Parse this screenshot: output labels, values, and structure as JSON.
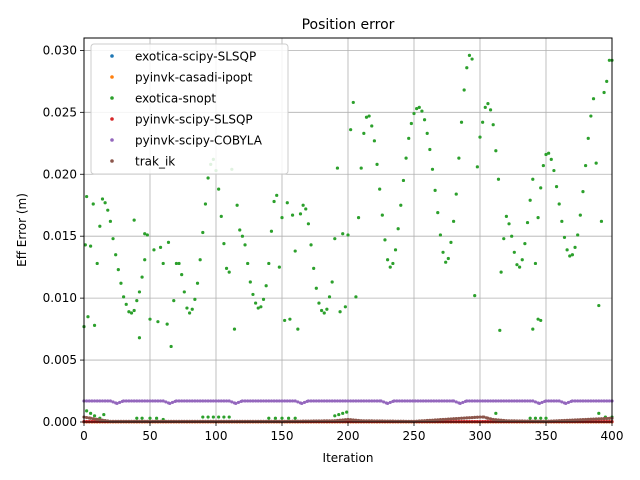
{
  "chart_data": {
    "type": "scatter",
    "title": "Position error",
    "xlabel": "Iteration",
    "ylabel": "Eff Error (m)",
    "xlim": [
      0,
      400
    ],
    "ylim": [
      0,
      0.031
    ],
    "xticks": [
      "0",
      "50",
      "100",
      "150",
      "200",
      "250",
      "300",
      "350",
      "400"
    ],
    "yticks": [
      "0.000",
      "0.005",
      "0.010",
      "0.015",
      "0.020",
      "0.025",
      "0.030"
    ],
    "grid": true,
    "legend_position": "top-left",
    "series": [
      {
        "name": "exotica-scipy-SLSQP",
        "color": "#1f77b4",
        "pattern": "near-zero",
        "points": [
          [
            0,
            2e-05
          ],
          [
            100,
            2e-05
          ],
          [
            200,
            2e-05
          ],
          [
            300,
            2e-05
          ],
          [
            400,
            2e-05
          ]
        ]
      },
      {
        "name": "pyinvk-casadi-ipopt",
        "color": "#ff7f0e",
        "pattern": "near-zero",
        "points": [
          [
            0,
            1e-05
          ],
          [
            200,
            1e-05
          ],
          [
            400,
            1e-05
          ]
        ]
      },
      {
        "name": "exotica-snopt",
        "color": "#2ca02c",
        "pattern": "oscillating",
        "points": [
          [
            0,
            0.0077
          ],
          [
            1,
            0.0143
          ],
          [
            2,
            0.0182
          ],
          [
            3,
            0.0085
          ],
          [
            5,
            0.0142
          ],
          [
            7,
            0.0176
          ],
          [
            8,
            0.0078
          ],
          [
            10,
            0.0128
          ],
          [
            12,
            0.0158
          ],
          [
            14,
            0.018
          ],
          [
            16,
            0.0177
          ],
          [
            18,
            0.0171
          ],
          [
            20,
            0.0162
          ],
          [
            22,
            0.0148
          ],
          [
            24,
            0.0135
          ],
          [
            26,
            0.0123
          ],
          [
            28,
            0.0112
          ],
          [
            30,
            0.0101
          ],
          [
            32,
            0.0095
          ],
          [
            34,
            0.0089
          ],
          [
            36,
            0.0088
          ],
          [
            38,
            0.009
          ],
          [
            40,
            0.0098
          ],
          [
            42,
            0.0105
          ],
          [
            44,
            0.0117
          ],
          [
            46,
            0.0131
          ],
          [
            48,
            0.0151
          ],
          [
            38,
            0.0163
          ],
          [
            42,
            0.0068
          ],
          [
            46,
            0.0152
          ],
          [
            50,
            0.0083
          ],
          [
            53,
            0.0139
          ],
          [
            56,
            0.0081
          ],
          [
            58,
            0.0141
          ],
          [
            60,
            0.0128
          ],
          [
            63,
            0.0079
          ],
          [
            64,
            0.0145
          ],
          [
            66,
            0.0061
          ],
          [
            68,
            0.0098
          ],
          [
            70,
            0.0128
          ],
          [
            72,
            0.0128
          ],
          [
            74,
            0.0119
          ],
          [
            76,
            0.0105
          ],
          [
            78,
            0.0092
          ],
          [
            80,
            0.0088
          ],
          [
            82,
            0.0091
          ],
          [
            84,
            0.0099
          ],
          [
            86,
            0.0112
          ],
          [
            88,
            0.0131
          ],
          [
            90,
            0.0153
          ],
          [
            92,
            0.0176
          ],
          [
            94,
            0.0197
          ],
          [
            96,
            0.0208
          ],
          [
            98,
            0.0212
          ],
          [
            100,
            0.0203
          ],
          [
            102,
            0.0188
          ],
          [
            104,
            0.0166
          ],
          [
            106,
            0.0144
          ],
          [
            108,
            0.0124
          ],
          [
            110,
            0.0121
          ],
          [
            112,
            0.0204
          ],
          [
            114,
            0.0075
          ],
          [
            116,
            0.0175
          ],
          [
            118,
            0.0155
          ],
          [
            120,
            0.015
          ],
          [
            122,
            0.0143
          ],
          [
            124,
            0.0128
          ],
          [
            126,
            0.0113
          ],
          [
            128,
            0.0103
          ],
          [
            130,
            0.0096
          ],
          [
            132,
            0.0092
          ],
          [
            134,
            0.0093
          ],
          [
            136,
            0.0099
          ],
          [
            138,
            0.011
          ],
          [
            140,
            0.0128
          ],
          [
            142,
            0.0154
          ],
          [
            144,
            0.0178
          ],
          [
            146,
            0.0183
          ],
          [
            148,
            0.0125
          ],
          [
            150,
            0.0165
          ],
          [
            152,
            0.0082
          ],
          [
            154,
            0.0177
          ],
          [
            156,
            0.0083
          ],
          [
            158,
            0.0167
          ],
          [
            160,
            0.0138
          ],
          [
            162,
            0.0075
          ],
          [
            164,
            0.0168
          ],
          [
            166,
            0.0175
          ],
          [
            168,
            0.0172
          ],
          [
            170,
            0.016
          ],
          [
            172,
            0.0143
          ],
          [
            174,
            0.0124
          ],
          [
            176,
            0.0108
          ],
          [
            178,
            0.0096
          ],
          [
            180,
            0.009
          ],
          [
            182,
            0.0088
          ],
          [
            184,
            0.0091
          ],
          [
            186,
            0.0101
          ],
          [
            188,
            0.0113
          ],
          [
            190,
            0.0148
          ],
          [
            192,
            0.0205
          ],
          [
            194,
            0.0089
          ],
          [
            196,
            0.0152
          ],
          [
            198,
            0.0093
          ],
          [
            200,
            0.0151
          ],
          [
            202,
            0.0236
          ],
          [
            204,
            0.0258
          ],
          [
            206,
            0.0101
          ],
          [
            208,
            0.0165
          ],
          [
            210,
            0.0205
          ],
          [
            212,
            0.0233
          ],
          [
            214,
            0.0246
          ],
          [
            216,
            0.0247
          ],
          [
            218,
            0.0239
          ],
          [
            220,
            0.0227
          ],
          [
            222,
            0.0208
          ],
          [
            224,
            0.0188
          ],
          [
            226,
            0.0167
          ],
          [
            228,
            0.0147
          ],
          [
            230,
            0.0131
          ],
          [
            232,
            0.0125
          ],
          [
            234,
            0.0128
          ],
          [
            236,
            0.0139
          ],
          [
            238,
            0.0156
          ],
          [
            240,
            0.0175
          ],
          [
            242,
            0.0195
          ],
          [
            244,
            0.0213
          ],
          [
            246,
            0.0229
          ],
          [
            248,
            0.0241
          ],
          [
            250,
            0.0249
          ],
          [
            252,
            0.0253
          ],
          [
            254,
            0.0254
          ],
          [
            256,
            0.0251
          ],
          [
            258,
            0.0244
          ],
          [
            260,
            0.0233
          ],
          [
            262,
            0.022
          ],
          [
            264,
            0.0204
          ],
          [
            266,
            0.0187
          ],
          [
            268,
            0.0169
          ],
          [
            270,
            0.0151
          ],
          [
            272,
            0.0137
          ],
          [
            274,
            0.0129
          ],
          [
            276,
            0.0132
          ],
          [
            278,
            0.0145
          ],
          [
            280,
            0.0162
          ],
          [
            282,
            0.0184
          ],
          [
            284,
            0.0213
          ],
          [
            286,
            0.0242
          ],
          [
            288,
            0.0268
          ],
          [
            290,
            0.0286
          ],
          [
            292,
            0.0296
          ],
          [
            294,
            0.0293
          ],
          [
            296,
            0.0102
          ],
          [
            298,
            0.0206
          ],
          [
            300,
            0.023
          ],
          [
            302,
            0.0242
          ],
          [
            304,
            0.0254
          ],
          [
            306,
            0.0257
          ],
          [
            308,
            0.0252
          ],
          [
            310,
            0.024
          ],
          [
            312,
            0.0219
          ],
          [
            314,
            0.0196
          ],
          [
            316,
            0.0121
          ],
          [
            318,
            0.0148
          ],
          [
            320,
            0.0166
          ],
          [
            322,
            0.016
          ],
          [
            324,
            0.015
          ],
          [
            326,
            0.0137
          ],
          [
            328,
            0.0127
          ],
          [
            330,
            0.0125
          ],
          [
            332,
            0.0131
          ],
          [
            334,
            0.0144
          ],
          [
            336,
            0.0161
          ],
          [
            338,
            0.0179
          ],
          [
            340,
            0.0196
          ],
          [
            342,
            0.0128
          ],
          [
            344,
            0.0165
          ],
          [
            346,
            0.0189
          ],
          [
            348,
            0.0207
          ],
          [
            350,
            0.0216
          ],
          [
            352,
            0.0217
          ],
          [
            354,
            0.0212
          ],
          [
            356,
            0.0203
          ],
          [
            358,
            0.019
          ],
          [
            360,
            0.0176
          ],
          [
            362,
            0.0162
          ],
          [
            364,
            0.0149
          ],
          [
            366,
            0.0139
          ],
          [
            368,
            0.0134
          ],
          [
            370,
            0.0135
          ],
          [
            372,
            0.0141
          ],
          [
            374,
            0.0151
          ],
          [
            376,
            0.0167
          ],
          [
            378,
            0.0186
          ],
          [
            380,
            0.0207
          ],
          [
            382,
            0.0229
          ],
          [
            384,
            0.0247
          ],
          [
            386,
            0.0261
          ],
          [
            388,
            0.0209
          ],
          [
            390,
            0.0094
          ],
          [
            392,
            0.0162
          ],
          [
            394,
            0.0266
          ],
          [
            396,
            0.0275
          ],
          [
            398,
            0.0292
          ],
          [
            400,
            0.0292
          ],
          [
            315,
            0.0074
          ],
          [
            340,
            0.0075
          ],
          [
            344,
            0.0083
          ],
          [
            346,
            0.0082
          ],
          [
            2,
            0.0009
          ],
          [
            5,
            0.0007
          ],
          [
            8,
            0.0005
          ],
          [
            12,
            0.0003
          ],
          [
            15,
            0.0006
          ],
          [
            40,
            0.0003
          ],
          [
            44,
            0.0003
          ],
          [
            50,
            0.0003
          ],
          [
            55,
            0.0003
          ],
          [
            60,
            0.0002
          ],
          [
            90,
            0.0004
          ],
          [
            94,
            0.0004
          ],
          [
            98,
            0.0004
          ],
          [
            102,
            0.0004
          ],
          [
            106,
            0.0004
          ],
          [
            110,
            0.0004
          ],
          [
            140,
            0.0003
          ],
          [
            145,
            0.0003
          ],
          [
            150,
            0.0003
          ],
          [
            155,
            0.0003
          ],
          [
            160,
            0.0003
          ],
          [
            190,
            0.0005
          ],
          [
            193,
            0.0006
          ],
          [
            196,
            0.0007
          ],
          [
            199,
            0.0008
          ],
          [
            312,
            0.0007
          ],
          [
            338,
            0.0003
          ],
          [
            342,
            0.0003
          ],
          [
            346,
            0.0003
          ],
          [
            350,
            0.0003
          ],
          [
            390,
            0.0007
          ],
          [
            395,
            0.0004
          ],
          [
            400,
            0.0004
          ]
        ]
      },
      {
        "name": "pyinvk-scipy-SLSQP",
        "color": "#d62728",
        "pattern": "near-zero",
        "points": [
          [
            0,
            3e-05
          ],
          [
            100,
            3e-05
          ],
          [
            200,
            3e-05
          ],
          [
            300,
            3e-05
          ],
          [
            400,
            3e-05
          ]
        ]
      },
      {
        "name": "pyinvk-scipy-COBYLA",
        "color": "#9467bd",
        "pattern": "band",
        "points": [
          [
            0,
            0.0017
          ],
          [
            20,
            0.0017
          ],
          [
            25,
            0.0015
          ],
          [
            30,
            0.0017
          ],
          [
            60,
            0.0017
          ],
          [
            65,
            0.0015
          ],
          [
            70,
            0.0017
          ],
          [
            110,
            0.0017
          ],
          [
            115,
            0.0015
          ],
          [
            120,
            0.0017
          ],
          [
            160,
            0.0017
          ],
          [
            165,
            0.0015
          ],
          [
            170,
            0.0017
          ],
          [
            225,
            0.0017
          ],
          [
            230,
            0.0015
          ],
          [
            235,
            0.0017
          ],
          [
            280,
            0.0017
          ],
          [
            285,
            0.0015
          ],
          [
            290,
            0.0017
          ],
          [
            340,
            0.0017
          ],
          [
            345,
            0.0015
          ],
          [
            350,
            0.0017
          ],
          [
            360,
            0.0017
          ],
          [
            365,
            0.0015
          ],
          [
            370,
            0.0017
          ],
          [
            400,
            0.0017
          ]
        ]
      },
      {
        "name": "trak_ik",
        "color": "#8c564b",
        "pattern": "near-zero",
        "points": [
          [
            0,
            0.0004
          ],
          [
            5,
            0.0003
          ],
          [
            10,
            0.0002
          ],
          [
            20,
            5e-05
          ],
          [
            50,
            5e-05
          ],
          [
            100,
            5e-05
          ],
          [
            150,
            5e-05
          ],
          [
            190,
            0.0001
          ],
          [
            200,
            0.0002
          ],
          [
            210,
            0.0001
          ],
          [
            250,
            5e-05
          ],
          [
            300,
            0.0004
          ],
          [
            303,
            0.0004
          ],
          [
            306,
            0.0003
          ],
          [
            310,
            0.0002
          ],
          [
            320,
            0.0001
          ],
          [
            350,
            5e-05
          ],
          [
            400,
            0.0003
          ]
        ]
      }
    ]
  }
}
